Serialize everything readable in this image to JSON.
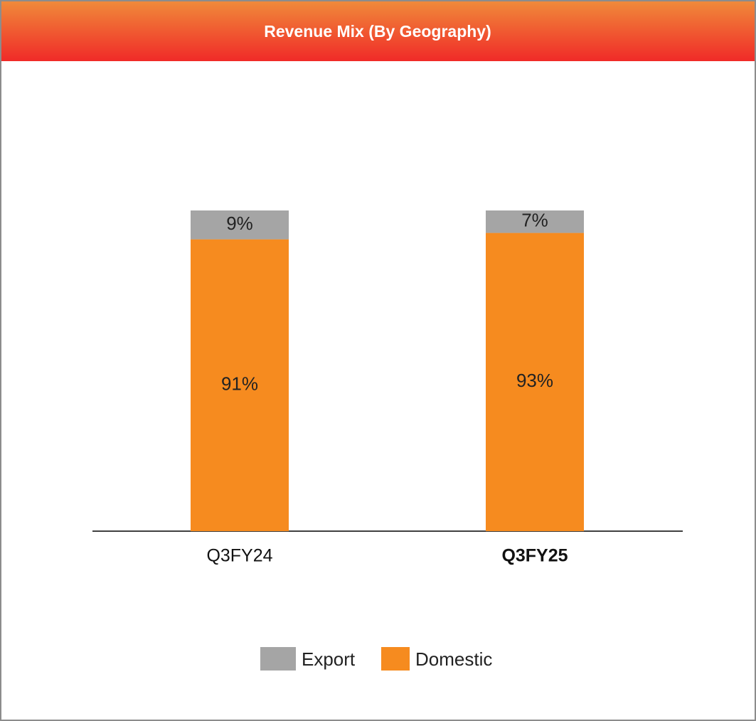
{
  "chart_data": {
    "type": "stacked_bar",
    "title": "Revenue Mix (By Geography)",
    "categories": [
      "Q3FY24",
      "Q3FY25"
    ],
    "emphasis_category": 1,
    "series": [
      {
        "name": "Export",
        "color": "#a5a5a5",
        "values": [
          9,
          7
        ],
        "value_labels": [
          "9%",
          "7%"
        ]
      },
      {
        "name": "Domestic",
        "color": "#f68b1f",
        "values": [
          91,
          93
        ],
        "value_labels": [
          "91%",
          "93%"
        ]
      }
    ]
  }
}
